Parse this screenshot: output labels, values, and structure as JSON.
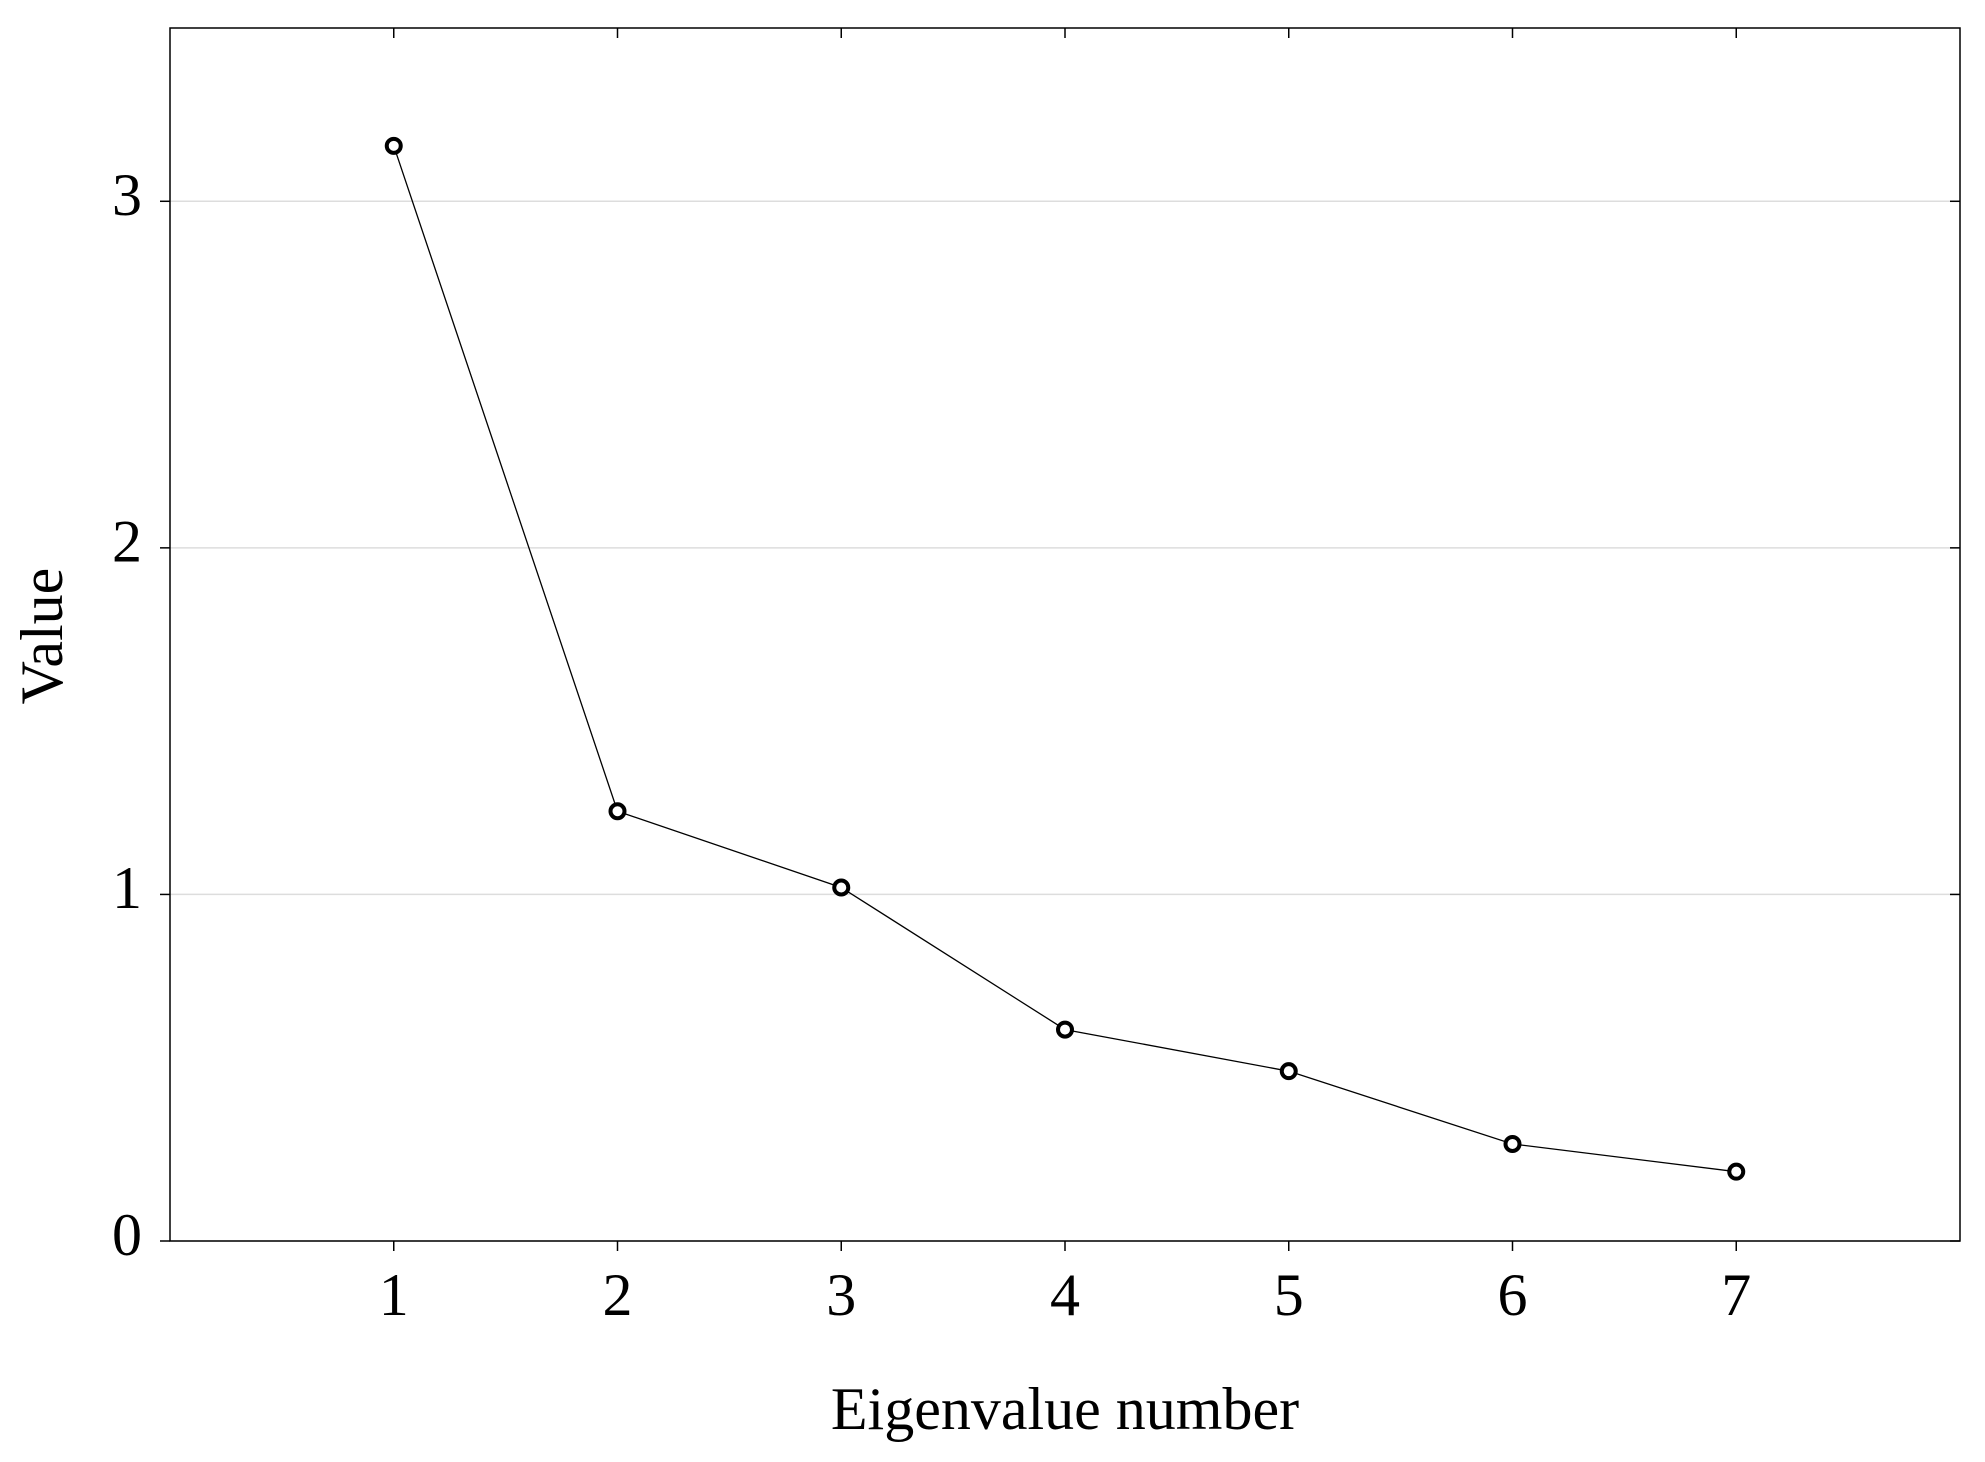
{
  "chart_data": {
    "type": "line",
    "x_label": "Eigenvalue number",
    "y_label": "Value",
    "x": [
      1,
      2,
      3,
      4,
      5,
      6,
      7
    ],
    "series": [
      {
        "color": "#000000",
        "values": [
          3.16,
          1.24,
          1.02,
          0.61,
          0.49,
          0.28,
          0.2
        ]
      }
    ],
    "xlim": [
      0,
      8
    ],
    "xticks": [
      1,
      2,
      3,
      4,
      5,
      6,
      7
    ],
    "ylim": [
      0,
      3.5
    ],
    "yticks": [
      0,
      1,
      2,
      3
    ],
    "grid": true
  }
}
